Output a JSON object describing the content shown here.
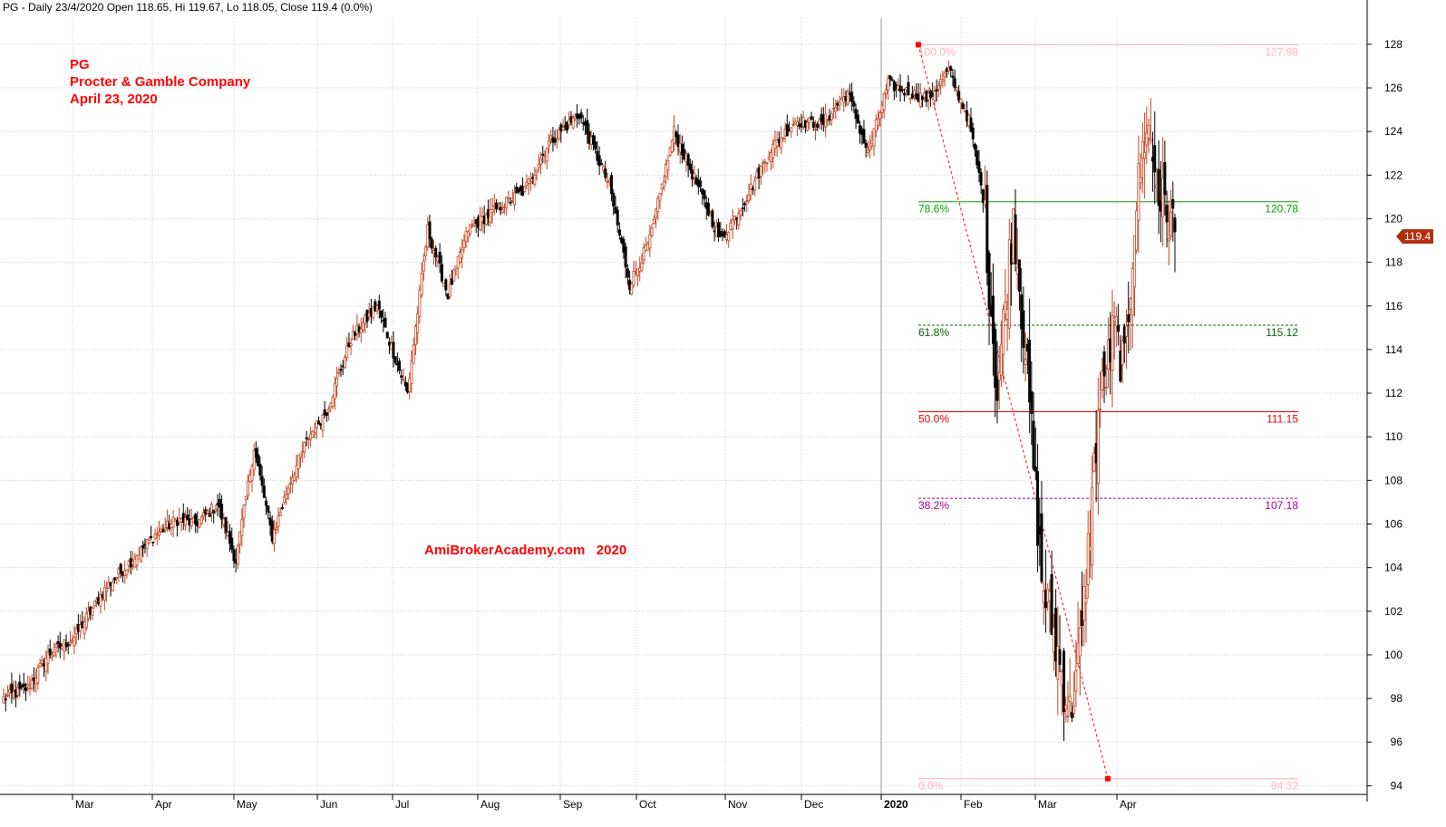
{
  "header": {
    "text": "PG - Daily 23/4/2020 Open 118.65, Hi 119.67, Lo 118.05, Close 119.4 (0.0%)"
  },
  "annotation": {
    "symbol": "PG",
    "company": "Procter & Gamble Company",
    "date": "April 23, 2020",
    "watermark": "AmiBrokerAcademy.com   2020",
    "color": "#ff0000"
  },
  "chart_data": {
    "type": "candlestick",
    "title": "PG - Daily",
    "ylim": [
      93.6,
      129.2
    ],
    "y_ticks": [
      94,
      96,
      98,
      100,
      102,
      104,
      106,
      108,
      110,
      112,
      114,
      116,
      118,
      120,
      122,
      124,
      126,
      128
    ],
    "x_labels": [
      {
        "label": "Mar",
        "bold": false
      },
      {
        "label": "Apr",
        "bold": false
      },
      {
        "label": "May",
        "bold": false
      },
      {
        "label": "Jun",
        "bold": false
      },
      {
        "label": "Jul",
        "bold": false
      },
      {
        "label": "Aug",
        "bold": false
      },
      {
        "label": "Sep",
        "bold": false
      },
      {
        "label": "Oct",
        "bold": false
      },
      {
        "label": "Nov",
        "bold": false
      },
      {
        "label": "Dec",
        "bold": false
      },
      {
        "label": "2020",
        "bold": true
      },
      {
        "label": "Feb",
        "bold": false
      },
      {
        "label": "Mar",
        "bold": false
      },
      {
        "label": "Apr",
        "bold": false
      }
    ],
    "grid": true,
    "last_price": "119.4",
    "price_path": [
      [
        0,
        98.0
      ],
      [
        12,
        98.5
      ],
      [
        22,
        100.0
      ],
      [
        35,
        100.8
      ],
      [
        50,
        103.0
      ],
      [
        62,
        104.2
      ],
      [
        75,
        105.5
      ],
      [
        86,
        106.2
      ],
      [
        95,
        106.0
      ],
      [
        106,
        106.9
      ],
      [
        115,
        104.3
      ],
      [
        124,
        109.5
      ],
      [
        133,
        105.4
      ],
      [
        142,
        108.0
      ],
      [
        151,
        110.0
      ],
      [
        160,
        111.2
      ],
      [
        172,
        114.5
      ],
      [
        185,
        116.0
      ],
      [
        200,
        112.0
      ],
      [
        210,
        119.5
      ],
      [
        220,
        116.5
      ],
      [
        230,
        119.5
      ],
      [
        245,
        120.5
      ],
      [
        258,
        121.3
      ],
      [
        270,
        123.5
      ],
      [
        285,
        124.8
      ],
      [
        300,
        121.5
      ],
      [
        310,
        117.0
      ],
      [
        320,
        119.0
      ],
      [
        332,
        124.0
      ],
      [
        345,
        121.2
      ],
      [
        355,
        119.0
      ],
      [
        365,
        120.5
      ],
      [
        380,
        123.2
      ],
      [
        392,
        124.5
      ],
      [
        405,
        124.3
      ],
      [
        418,
        125.8
      ],
      [
        428,
        123.0
      ],
      [
        438,
        126.2
      ],
      [
        448,
        125.8
      ],
      [
        458,
        125.5
      ],
      [
        468,
        126.8
      ],
      [
        478,
        124.5
      ],
      [
        485,
        121.0
      ],
      [
        492,
        112.0
      ],
      [
        500,
        120.2
      ],
      [
        506,
        114.0
      ],
      [
        514,
        103.5
      ],
      [
        520,
        101.0
      ],
      [
        528,
        97.2
      ],
      [
        534,
        101.0
      ],
      [
        542,
        111.0
      ],
      [
        550,
        115.0
      ],
      [
        555,
        113.0
      ],
      [
        560,
        120.0
      ],
      [
        566,
        124.5
      ],
      [
        572,
        121.2
      ],
      [
        580,
        119.4
      ]
    ],
    "candle_count": 581,
    "fibonacci": {
      "high": 127.98,
      "low": 94.32,
      "levels": [
        {
          "pct": "100.0%",
          "value": 127.98,
          "value_label": "127.98",
          "color": "#ffb0c0",
          "dashed": false
        },
        {
          "pct": "78.6%",
          "value": 120.78,
          "value_label": "120.78",
          "color": "#00a000",
          "dashed": false
        },
        {
          "pct": "61.8%",
          "value": 115.12,
          "value_label": "115.12",
          "color": "#006600",
          "dashed": true
        },
        {
          "pct": "50.0%",
          "value": 111.15,
          "value_label": "111.15",
          "color": "#e00000",
          "dashed": false
        },
        {
          "pct": "38.2%",
          "value": 107.18,
          "value_label": "107.18",
          "color": "#a000a0",
          "dashed": true
        },
        {
          "pct": "0.0%",
          "value": 94.32,
          "value_label": "94.32",
          "color": "#ffb0c0",
          "dashed": false
        }
      ],
      "trend_color": "#ff0000"
    },
    "colors": {
      "up": "#c0451f",
      "down": "#000000",
      "grid": "#cccccc",
      "axis": "#000000",
      "price_tag": "#b03010"
    }
  }
}
